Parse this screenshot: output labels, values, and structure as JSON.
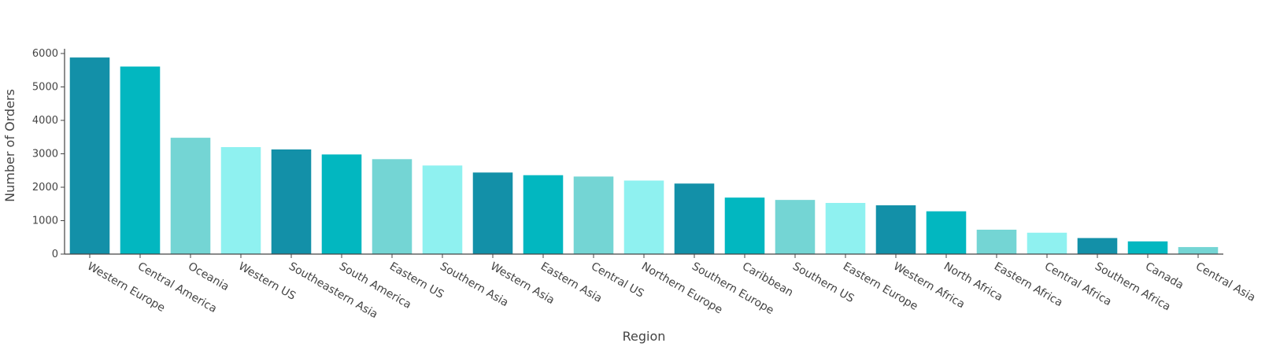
{
  "chart_data": {
    "type": "bar",
    "title": "",
    "xlabel": "Region",
    "ylabel": "Number of Orders",
    "ylim": [
      0,
      6000
    ],
    "yticks": [
      0,
      1000,
      2000,
      3000,
      4000,
      5000,
      6000
    ],
    "grid": false,
    "legend": "none",
    "palette": [
      "#1390a8",
      "#02b7c0",
      "#74d5d4",
      "#8ff1f0"
    ],
    "categories": [
      "Western Europe",
      "Central America",
      "Oceania",
      "Western US",
      "Southeastern Asia",
      "South America",
      "Eastern US",
      "Southern Asia",
      "Western Asia",
      "Eastern Asia",
      "Central US",
      "Northern Europe",
      "Southern Europe",
      "Caribbean",
      "Southern US",
      "Eastern Europe",
      "Western Africa",
      "North Africa",
      "Eastern Africa",
      "Central Africa",
      "Southern Africa",
      "Canada",
      "Central Asia"
    ],
    "values": [
      5880,
      5610,
      3480,
      3200,
      3130,
      2980,
      2840,
      2650,
      2440,
      2360,
      2320,
      2200,
      2110,
      1690,
      1620,
      1530,
      1460,
      1280,
      730,
      640,
      480,
      380,
      210
    ]
  }
}
